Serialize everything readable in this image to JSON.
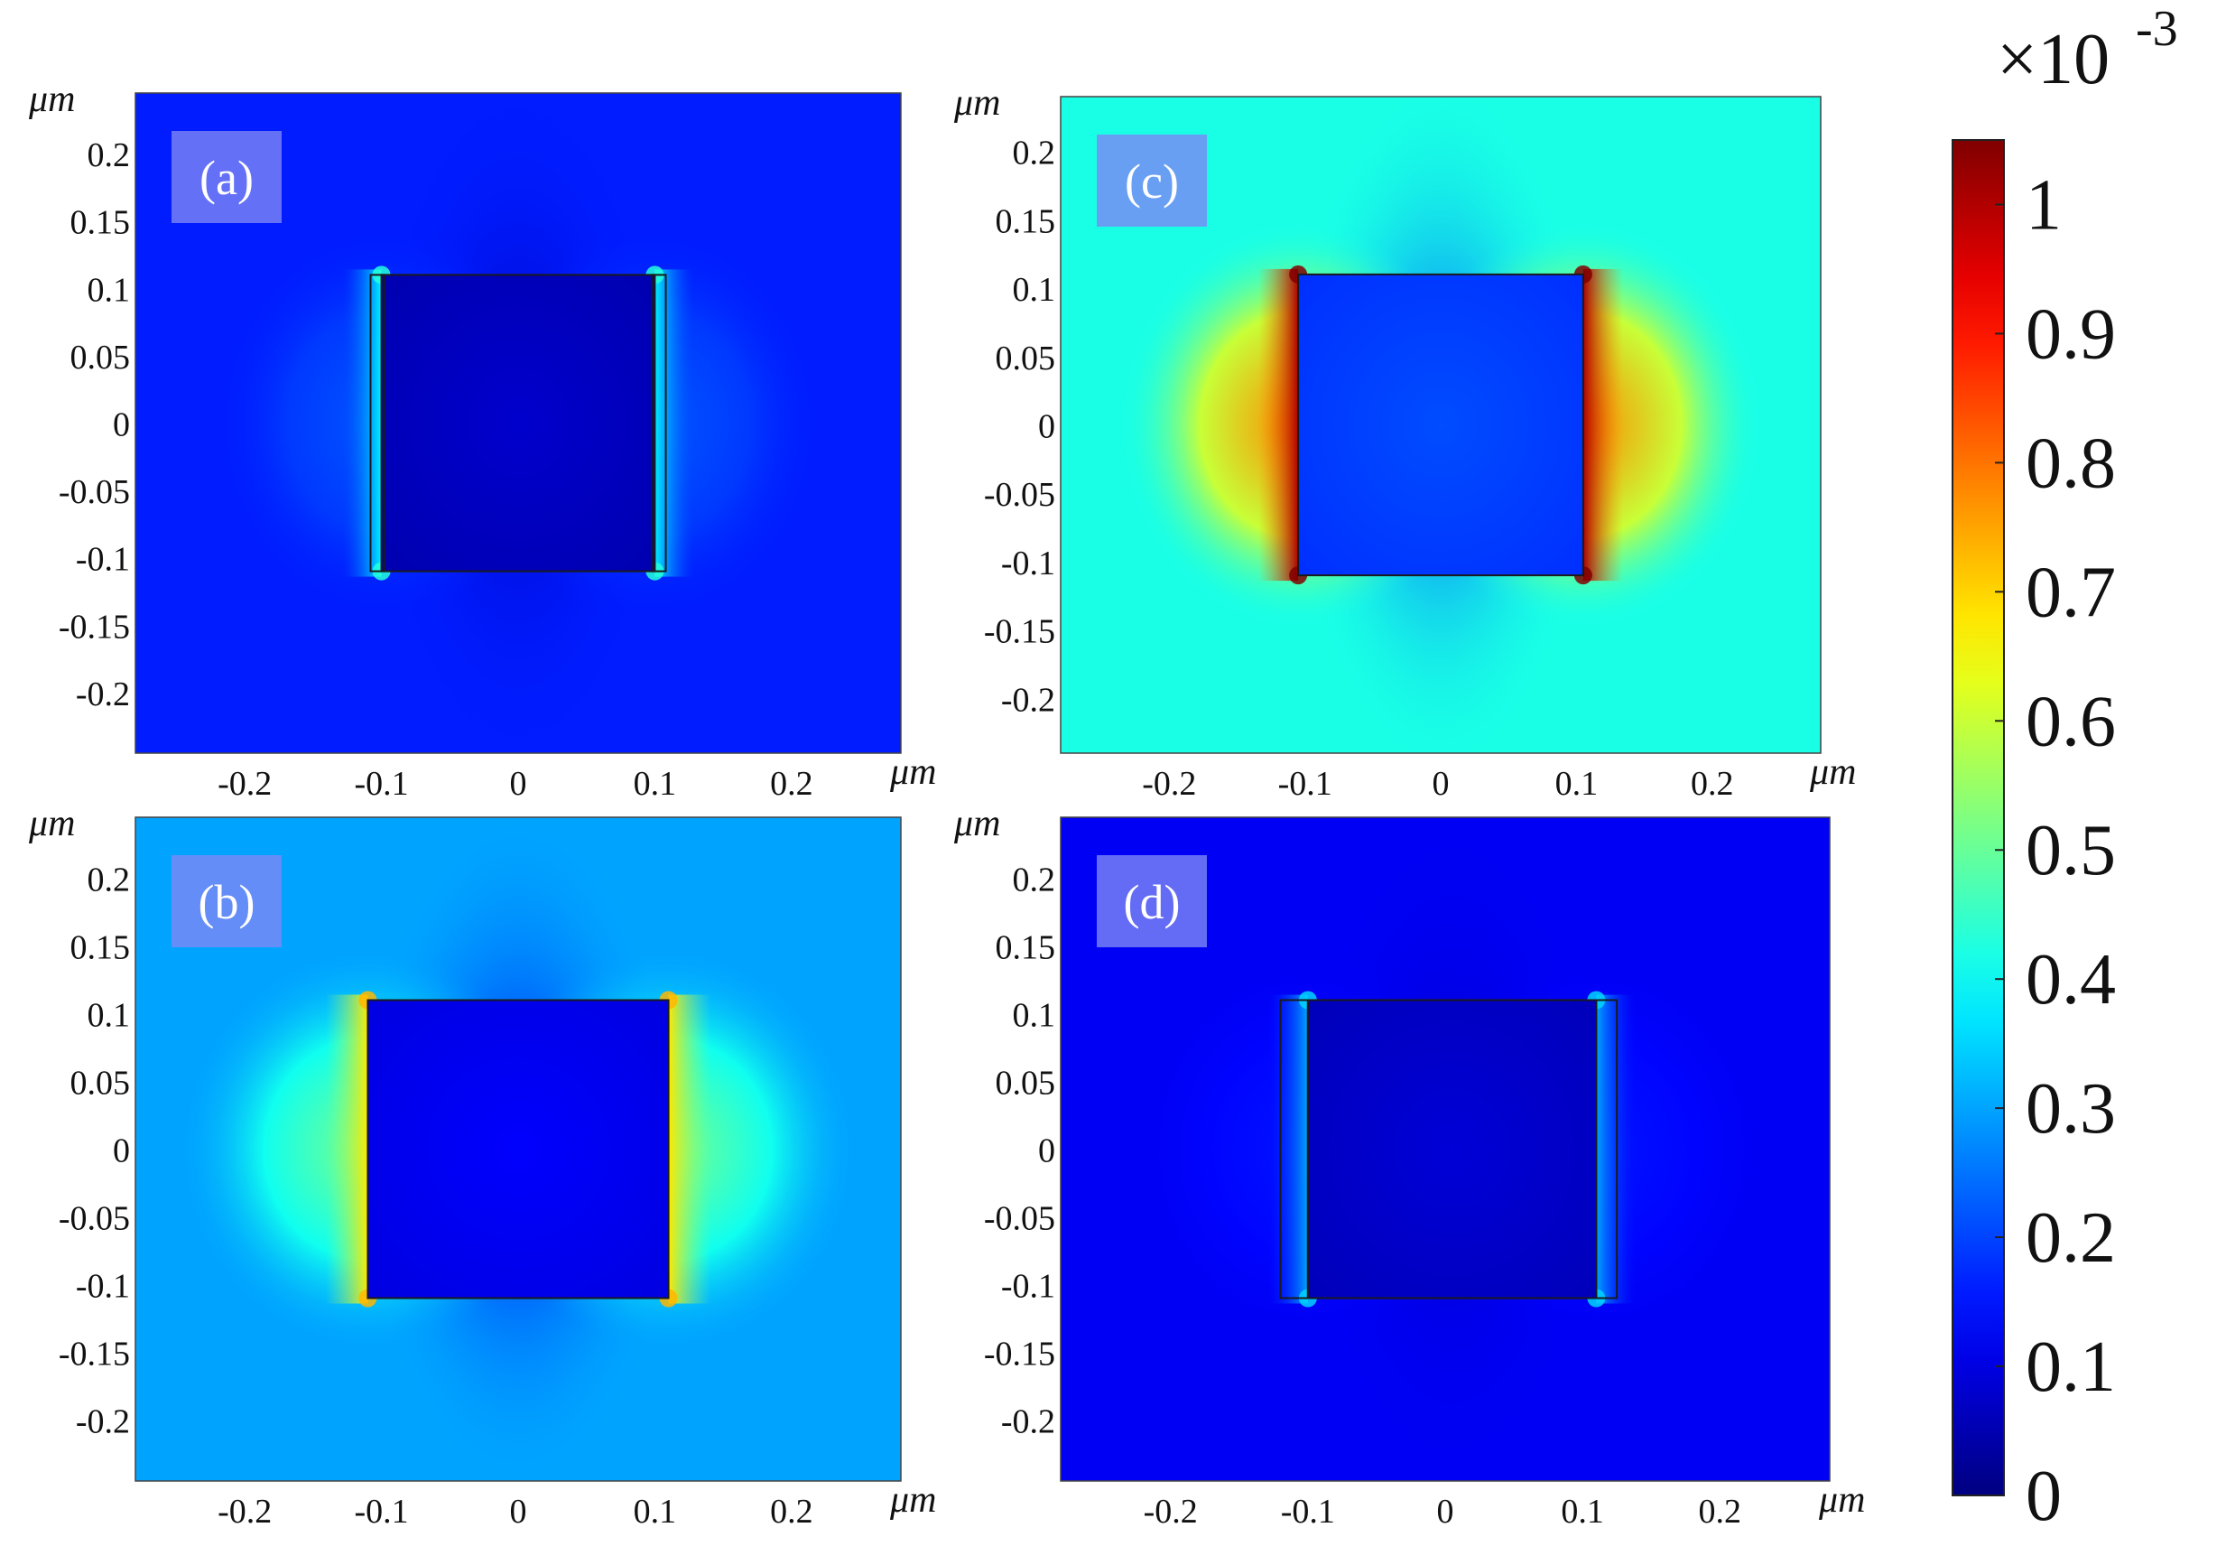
{
  "figure": {
    "colorbar": {
      "multiplier": "×10",
      "exponent": "-3",
      "ticks": [
        "0",
        "0.1",
        "0.2",
        "0.3",
        "0.4",
        "0.5",
        "0.6",
        "0.7",
        "0.8",
        "0.9",
        "1"
      ],
      "min": 0,
      "max": 1.05,
      "colormap": "jet"
    }
  },
  "chart_data": [
    {
      "type": "heatmap",
      "panel_label": "(a)",
      "xlabel": "μm",
      "ylabel": "μm",
      "xlim": [
        -0.28,
        0.28
      ],
      "ylim": [
        -0.245,
        0.245
      ],
      "xticks": [
        -0.2,
        -0.1,
        0,
        0.1,
        0.2
      ],
      "xtick_labels": [
        "-0.2",
        "-0.1",
        "0",
        "0.1",
        "0.2"
      ],
      "yticks": [
        0.2,
        0.15,
        0.1,
        0.05,
        0,
        -0.05,
        -0.1,
        -0.15,
        -0.2
      ],
      "ytick_labels": [
        "0.2",
        "0.15",
        "0.1",
        "0.05",
        "0",
        "-0.05",
        "-0.1",
        "-0.15",
        "-0.2"
      ],
      "square": [
        -0.1,
        0.1,
        -0.11,
        0.11
      ],
      "side_strips": [
        [
          -0.108,
          -0.098
        ],
        [
          0.098,
          0.108
        ]
      ],
      "background_value": 0.16,
      "inside_value": 0.05,
      "edge_peak_value": 0.38,
      "lobe_value": 0.22
    },
    {
      "type": "heatmap",
      "panel_label": "(b)",
      "xlabel": "μm",
      "ylabel": "μm",
      "xlim": [
        -0.28,
        0.28
      ],
      "ylim": [
        -0.245,
        0.245
      ],
      "xticks": [
        -0.2,
        -0.1,
        0,
        0.1,
        0.2
      ],
      "xtick_labels": [
        "-0.2",
        "-0.1",
        "0",
        "0.1",
        "0.2"
      ],
      "yticks": [
        0.2,
        0.15,
        0.1,
        0.05,
        0,
        -0.05,
        -0.1,
        -0.15,
        -0.2
      ],
      "ytick_labels": [
        "0.2",
        "0.15",
        "0.1",
        "0.05",
        "0",
        "-0.05",
        "-0.1",
        "-0.15",
        "-0.2"
      ],
      "square": [
        -0.11,
        0.11,
        -0.11,
        0.11
      ],
      "background_value": 0.3,
      "inside_value": 0.1,
      "edge_peak_value": 0.68,
      "lobe_value": 0.52
    },
    {
      "type": "heatmap",
      "panel_label": "(c)",
      "xlabel": "μm",
      "ylabel": "μm",
      "xlim": [
        -0.28,
        0.28
      ],
      "ylim": [
        -0.24,
        0.24
      ],
      "xticks": [
        -0.2,
        -0.1,
        0,
        0.1,
        0.2
      ],
      "xtick_labels": [
        "-0.2",
        "-0.1",
        "0",
        "0.1",
        "0.2"
      ],
      "yticks": [
        0.2,
        0.15,
        0.1,
        0.05,
        0,
        -0.05,
        -0.1,
        -0.15,
        -0.2
      ],
      "ytick_labels": [
        "0.2",
        "0.15",
        "0.1",
        "0.05",
        "0",
        "-0.05",
        "-0.1",
        "-0.15",
        "-0.2"
      ],
      "square": [
        -0.105,
        0.105,
        -0.11,
        0.11
      ],
      "background_value": 0.42,
      "inside_value": 0.18,
      "edge_peak_value": 1.0,
      "lobe_value": 0.78
    },
    {
      "type": "heatmap",
      "panel_label": "(d)",
      "xlabel": "μm",
      "ylabel": "μm",
      "xlim": [
        -0.28,
        0.28
      ],
      "ylim": [
        -0.245,
        0.245
      ],
      "xticks": [
        -0.2,
        -0.1,
        0,
        0.1,
        0.2
      ],
      "xtick_labels": [
        "-0.2",
        "-0.1",
        "0",
        "0.1",
        "0.2"
      ],
      "yticks": [
        0.2,
        0.15,
        0.1,
        0.05,
        0,
        -0.05,
        -0.1,
        -0.15,
        -0.2
      ],
      "ytick_labels": [
        "0.2",
        "0.15",
        "0.1",
        "0.05",
        "0",
        "-0.05",
        "-0.1",
        "-0.15",
        "-0.2"
      ],
      "square": [
        -0.1,
        0.11,
        -0.11,
        0.11
      ],
      "side_strips": [
        [
          -0.12,
          -0.1
        ],
        [
          0.11,
          0.125
        ]
      ],
      "background_value": 0.12,
      "inside_value": 0.06,
      "edge_peak_value": 0.3,
      "lobe_value": 0.15
    }
  ]
}
